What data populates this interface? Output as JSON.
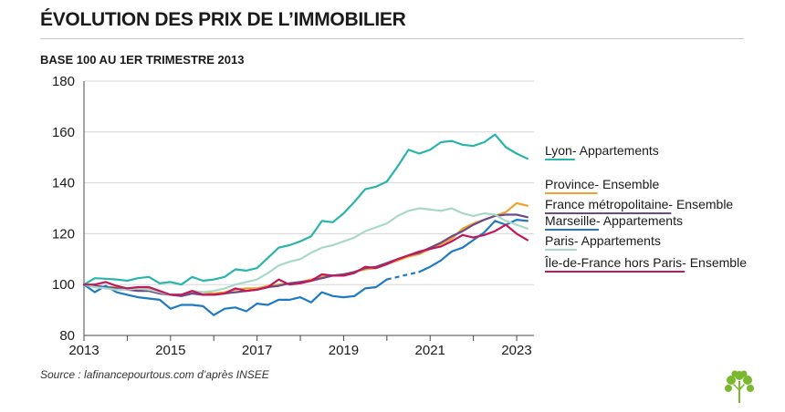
{
  "header": {
    "title": "ÉVOLUTION DES PRIX DE L’IMMOBILIER",
    "subtitle": "BASE 100 AU 1ER TRIMESTRE 2013"
  },
  "footer": {
    "source": "Source : lafinancepourtous.com d’après INSEE"
  },
  "logo": {
    "icon": "tree-icon",
    "color": "#7ab82e"
  },
  "chart_data": {
    "type": "line",
    "title": "ÉVOLUTION DES PRIX DE L’IMMOBILIER",
    "subtitle": "BASE 100 AU 1ER TRIMESTRE 2013",
    "xlim": [
      2013,
      2023.4
    ],
    "ylim": [
      80,
      180
    ],
    "x_ticks": [
      "2013",
      "2015",
      "2017",
      "2019",
      "2021",
      "2023"
    ],
    "y_ticks": [
      "80",
      "100",
      "120",
      "140",
      "160",
      "180"
    ],
    "grid": true,
    "legend_position": "right",
    "series": [
      {
        "name": "Lyon",
        "suffix": " - Appartements",
        "color": "#2ab5aa",
        "x": [
          2013,
          2013.25,
          2013.5,
          2013.75,
          2014,
          2014.25,
          2014.5,
          2014.75,
          2015,
          2015.25,
          2015.5,
          2015.75,
          2016,
          2016.25,
          2016.5,
          2016.75,
          2017,
          2017.25,
          2017.5,
          2017.75,
          2018,
          2018.25,
          2018.5,
          2018.75,
          2019,
          2019.25,
          2019.5,
          2019.75,
          2020,
          2020.25,
          2020.5,
          2020.75,
          2021,
          2021.25,
          2021.5,
          2021.75,
          2022,
          2022.25,
          2022.5,
          2022.75,
          2023,
          2023.25
        ],
        "y": [
          100,
          102.5,
          102.3,
          102,
          101.5,
          102.5,
          103,
          100.5,
          101,
          100,
          103,
          101.5,
          102,
          103,
          106,
          105.5,
          106.5,
          110.5,
          114.5,
          115.5,
          117,
          119,
          125,
          124.5,
          128,
          132.5,
          137.5,
          138.5,
          140.5,
          146.5,
          153,
          151.5,
          153,
          156,
          156.5,
          155,
          154.5,
          156,
          159,
          154,
          151.5,
          149.5
        ]
      },
      {
        "name": "Province",
        "suffix": " - Ensemble",
        "color": "#f0a030",
        "x": [
          2013,
          2013.25,
          2013.5,
          2013.75,
          2014,
          2014.25,
          2014.5,
          2014.75,
          2015,
          2015.25,
          2015.5,
          2015.75,
          2016,
          2016.25,
          2016.5,
          2016.75,
          2017,
          2017.25,
          2017.5,
          2017.75,
          2018,
          2018.25,
          2018.5,
          2018.75,
          2019,
          2019.25,
          2019.5,
          2019.75,
          2020,
          2020.25,
          2020.5,
          2020.75,
          2021,
          2021.25,
          2021.5,
          2021.75,
          2022,
          2022.25,
          2022.5,
          2022.75,
          2023,
          2023.25
        ],
        "y": [
          100,
          99.5,
          99,
          99,
          98.5,
          98,
          98.5,
          97,
          96,
          96,
          97.5,
          97,
          96.5,
          97,
          98,
          98.5,
          98.5,
          99.5,
          100,
          100.5,
          101,
          102,
          103,
          103.5,
          104,
          105,
          106,
          106.5,
          108,
          109.5,
          111,
          112,
          114,
          116,
          118,
          122,
          124,
          125.5,
          127,
          128.5,
          132,
          131
        ]
      },
      {
        "name": "France  métropolitaine",
        "suffix": " - Ensemble",
        "color": "#6a4a8a",
        "x": [
          2013,
          2013.25,
          2013.5,
          2013.75,
          2014,
          2014.25,
          2014.5,
          2014.75,
          2015,
          2015.25,
          2015.5,
          2015.75,
          2016,
          2016.25,
          2016.5,
          2016.75,
          2017,
          2017.25,
          2017.5,
          2017.75,
          2018,
          2018.25,
          2018.5,
          2018.75,
          2019,
          2019.25,
          2019.5,
          2019.75,
          2020,
          2020.25,
          2020.5,
          2020.75,
          2021,
          2021.25,
          2021.5,
          2021.75,
          2022,
          2022.25,
          2022.5,
          2022.75,
          2023,
          2023.25
        ],
        "y": [
          100,
          99.5,
          99,
          98.5,
          98,
          97.5,
          97.5,
          96.5,
          96,
          95.5,
          96.5,
          96,
          96,
          96.5,
          97,
          97.5,
          98,
          99,
          99.5,
          100.5,
          101,
          101.5,
          102.5,
          103.5,
          104,
          105,
          106.5,
          107,
          108.5,
          110,
          111.5,
          112.5,
          114.5,
          116.5,
          119,
          121,
          123.5,
          125.5,
          127,
          127.5,
          127.5,
          126.5
        ]
      },
      {
        "name": "Marseille",
        "suffix": " - Appartements",
        "color": "#1f7ac4",
        "x": [
          2013,
          2013.25,
          2013.5,
          2013.75,
          2014,
          2014.25,
          2014.5,
          2014.75,
          2015,
          2015.25,
          2015.5,
          2015.75,
          2016,
          2016.25,
          2016.5,
          2016.75,
          2017,
          2017.25,
          2017.5,
          2017.75,
          2018,
          2018.25,
          2018.5,
          2018.75,
          2019,
          2019.25,
          2019.5,
          2019.75,
          2020,
          2020.25,
          2020.5,
          2020.75,
          2021,
          2021.25,
          2021.5,
          2021.75,
          2022,
          2022.25,
          2022.5,
          2022.75,
          2023,
          2023.25
        ],
        "y": [
          100,
          97,
          99.5,
          97,
          96,
          95,
          94.5,
          94,
          90.5,
          92,
          92,
          91.5,
          88,
          90.5,
          91,
          89.5,
          92.5,
          92,
          94,
          94,
          95,
          93,
          97,
          95.5,
          95,
          95.5,
          98.5,
          99,
          102,
          103,
          104,
          105,
          107,
          109.5,
          113,
          114.5,
          117.5,
          120.5,
          125,
          123.5,
          125.5,
          125
        ],
        "dashed_x": [
          2020,
          2020.75
        ]
      },
      {
        "name": "Paris",
        "suffix": " - Appartements",
        "color": "#a8d8c8",
        "x": [
          2013,
          2013.25,
          2013.5,
          2013.75,
          2014,
          2014.25,
          2014.5,
          2014.75,
          2015,
          2015.25,
          2015.5,
          2015.75,
          2016,
          2016.25,
          2016.5,
          2016.75,
          2017,
          2017.25,
          2017.5,
          2017.75,
          2018,
          2018.25,
          2018.5,
          2018.75,
          2019,
          2019.25,
          2019.5,
          2019.75,
          2020,
          2020.25,
          2020.5,
          2020.75,
          2021,
          2021.25,
          2021.5,
          2021.75,
          2022,
          2022.25,
          2022.5,
          2022.75,
          2023,
          2023.25
        ],
        "y": [
          100,
          99,
          98.5,
          98,
          98,
          98.5,
          98,
          97,
          96,
          96,
          97.5,
          97,
          97.5,
          98.5,
          100,
          101,
          102,
          104.5,
          107.5,
          109,
          110,
          112.5,
          114.5,
          115.5,
          117,
          118.5,
          121,
          122.5,
          124,
          127,
          129,
          130,
          129.5,
          129,
          130,
          128,
          127,
          128,
          127.5,
          125,
          123.5,
          122
        ]
      },
      {
        "name": "Île-de-France hors Paris",
        "suffix": " - Ensemble",
        "color": "#c0185a",
        "x": [
          2013,
          2013.25,
          2013.5,
          2013.75,
          2014,
          2014.25,
          2014.5,
          2014.75,
          2015,
          2015.25,
          2015.5,
          2015.75,
          2016,
          2016.25,
          2016.5,
          2016.75,
          2017,
          2017.25,
          2017.5,
          2017.75,
          2018,
          2018.25,
          2018.5,
          2018.75,
          2019,
          2019.25,
          2019.5,
          2019.75,
          2020,
          2020.25,
          2020.5,
          2020.75,
          2021,
          2021.25,
          2021.5,
          2021.75,
          2022,
          2022.25,
          2022.5,
          2022.75,
          2023,
          2023.25
        ],
        "y": [
          100,
          100,
          101,
          99.5,
          98.5,
          99,
          99,
          97.5,
          96,
          96,
          97.5,
          96,
          96,
          96.5,
          98.5,
          97.5,
          98,
          99,
          102,
          100,
          100.5,
          101.5,
          104,
          103.5,
          103.5,
          104.5,
          107,
          106.5,
          108,
          110,
          111.5,
          113,
          114,
          115,
          117,
          119.5,
          118.5,
          119.5,
          121,
          123.5,
          120,
          117.5
        ]
      }
    ]
  }
}
